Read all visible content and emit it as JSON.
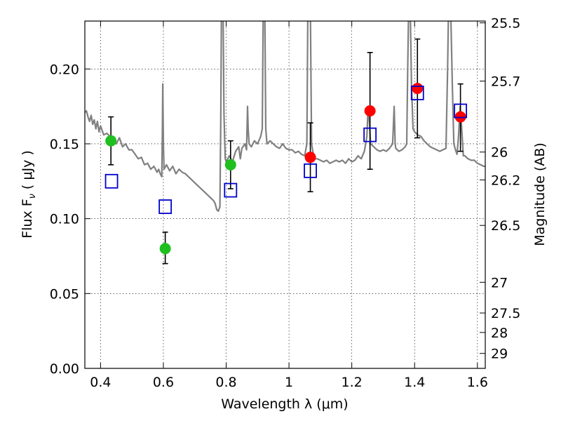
{
  "chart_data": {
    "type": "scatter",
    "xlabel": "Wavelength  λ (μm)",
    "ylabel": "Flux  F",
    "ylabel_sub": "ν",
    "ylabel_unit": "( μJy )",
    "y2label": "Magnitude (AB)",
    "xlim": [
      0.35,
      1.625
    ],
    "ylim": [
      0.0,
      0.232
    ],
    "grid": true,
    "x_ticks": [
      {
        "value": 0.4,
        "label": "0.4"
      },
      {
        "value": 0.6,
        "label": "0.6"
      },
      {
        "value": 0.8,
        "label": "0.8"
      },
      {
        "value": 1.0,
        "label": "1"
      },
      {
        "value": 1.2,
        "label": "1.2"
      },
      {
        "value": 1.4,
        "label": "1.4"
      },
      {
        "value": 1.6,
        "label": "1.6"
      }
    ],
    "y_ticks": [
      {
        "value": 0.0,
        "label": "0.00"
      },
      {
        "value": 0.05,
        "label": "0.05"
      },
      {
        "value": 0.1,
        "label": "0.10"
      },
      {
        "value": 0.15,
        "label": "0.15"
      },
      {
        "value": 0.2,
        "label": "0.20"
      }
    ],
    "mag_ticks": [
      {
        "flux": 0.2308,
        "label": "25.5"
      },
      {
        "flux": 0.1919,
        "label": "25.7"
      },
      {
        "flux": 0.1445,
        "label": "26"
      },
      {
        "flux": 0.1259,
        "label": "26.2"
      },
      {
        "flux": 0.0955,
        "label": "26.5"
      },
      {
        "flux": 0.0575,
        "label": "27"
      },
      {
        "flux": 0.037,
        "label": "27.5"
      },
      {
        "flux": 0.024,
        "label": "28"
      },
      {
        "flux": 0.01,
        "label": "29"
      }
    ],
    "colors": {
      "spectrum": "#808080",
      "green": "#1fbf1f",
      "red": "#ff0000",
      "model": "#0000cc",
      "errorbar": "#000000"
    },
    "series": [
      {
        "marker": "green-circle",
        "points": [
          {
            "x": 0.433,
            "y": 0.152,
            "ylo": 0.136,
            "yhi": 0.168
          },
          {
            "x": 0.606,
            "y": 0.08,
            "ylo": 0.07,
            "yhi": 0.091
          },
          {
            "x": 0.814,
            "y": 0.136,
            "ylo": 0.12,
            "yhi": 0.152
          }
        ]
      },
      {
        "marker": "red-circle",
        "points": [
          {
            "x": 1.068,
            "y": 0.141,
            "ylo": 0.118,
            "yhi": 0.164
          },
          {
            "x": 1.258,
            "y": 0.172,
            "ylo": 0.133,
            "yhi": 0.211
          },
          {
            "x": 1.409,
            "y": 0.187,
            "ylo": 0.154,
            "yhi": 0.22
          },
          {
            "x": 1.546,
            "y": 0.168,
            "ylo": 0.145,
            "yhi": 0.19
          }
        ]
      },
      {
        "marker": "blue-open-square",
        "points": [
          {
            "x": 0.435,
            "y": 0.125
          },
          {
            "x": 0.606,
            "y": 0.108
          },
          {
            "x": 0.814,
            "y": 0.119
          },
          {
            "x": 1.068,
            "y": 0.132
          },
          {
            "x": 1.258,
            "y": 0.156
          },
          {
            "x": 1.409,
            "y": 0.184
          },
          {
            "x": 1.546,
            "y": 0.172
          }
        ]
      }
    ],
    "spectrum": [
      [
        0.35,
        0.171
      ],
      [
        0.355,
        0.172
      ],
      [
        0.36,
        0.168
      ],
      [
        0.365,
        0.165
      ],
      [
        0.37,
        0.169
      ],
      [
        0.375,
        0.163
      ],
      [
        0.38,
        0.166
      ],
      [
        0.385,
        0.16
      ],
      [
        0.39,
        0.165
      ],
      [
        0.395,
        0.158
      ],
      [
        0.4,
        0.162
      ],
      [
        0.41,
        0.156
      ],
      [
        0.42,
        0.157
      ],
      [
        0.43,
        0.155
      ],
      [
        0.44,
        0.155
      ],
      [
        0.45,
        0.15
      ],
      [
        0.46,
        0.154
      ],
      [
        0.47,
        0.148
      ],
      [
        0.48,
        0.15
      ],
      [
        0.49,
        0.146
      ],
      [
        0.5,
        0.146
      ],
      [
        0.51,
        0.143
      ],
      [
        0.52,
        0.14
      ],
      [
        0.53,
        0.141
      ],
      [
        0.54,
        0.136
      ],
      [
        0.55,
        0.137
      ],
      [
        0.56,
        0.133
      ],
      [
        0.57,
        0.135
      ],
      [
        0.58,
        0.131
      ],
      [
        0.585,
        0.133
      ],
      [
        0.59,
        0.13
      ],
      [
        0.595,
        0.128
      ],
      [
        0.597,
        0.16
      ],
      [
        0.598,
        0.19
      ],
      [
        0.6,
        0.15
      ],
      [
        0.602,
        0.133
      ],
      [
        0.61,
        0.136
      ],
      [
        0.62,
        0.132
      ],
      [
        0.63,
        0.135
      ],
      [
        0.64,
        0.13
      ],
      [
        0.65,
        0.133
      ],
      [
        0.66,
        0.131
      ],
      [
        0.67,
        0.13
      ],
      [
        0.68,
        0.128
      ],
      [
        0.69,
        0.126
      ],
      [
        0.7,
        0.124
      ],
      [
        0.71,
        0.122
      ],
      [
        0.72,
        0.12
      ],
      [
        0.73,
        0.118
      ],
      [
        0.74,
        0.116
      ],
      [
        0.75,
        0.114
      ],
      [
        0.76,
        0.112
      ],
      [
        0.765,
        0.11
      ],
      [
        0.77,
        0.106
      ],
      [
        0.775,
        0.105
      ],
      [
        0.78,
        0.108
      ],
      [
        0.783,
        0.17
      ],
      [
        0.785,
        0.24
      ],
      [
        0.79,
        0.24
      ],
      [
        0.793,
        0.17
      ],
      [
        0.797,
        0.14
      ],
      [
        0.8,
        0.138
      ],
      [
        0.81,
        0.142
      ],
      [
        0.82,
        0.138
      ],
      [
        0.83,
        0.145
      ],
      [
        0.84,
        0.148
      ],
      [
        0.845,
        0.14
      ],
      [
        0.85,
        0.147
      ],
      [
        0.86,
        0.15
      ],
      [
        0.865,
        0.146
      ],
      [
        0.868,
        0.175
      ],
      [
        0.87,
        0.16
      ],
      [
        0.873,
        0.15
      ],
      [
        0.88,
        0.148
      ],
      [
        0.89,
        0.152
      ],
      [
        0.9,
        0.15
      ],
      [
        0.91,
        0.155
      ],
      [
        0.915,
        0.16
      ],
      [
        0.918,
        0.24
      ],
      [
        0.923,
        0.24
      ],
      [
        0.926,
        0.16
      ],
      [
        0.93,
        0.15
      ],
      [
        0.94,
        0.152
      ],
      [
        0.95,
        0.15
      ],
      [
        0.96,
        0.148
      ],
      [
        0.97,
        0.147
      ],
      [
        0.98,
        0.15
      ],
      [
        0.99,
        0.147
      ],
      [
        1.0,
        0.146
      ],
      [
        1.01,
        0.146
      ],
      [
        1.02,
        0.144
      ],
      [
        1.03,
        0.145
      ],
      [
        1.04,
        0.143
      ],
      [
        1.05,
        0.142
      ],
      [
        1.057,
        0.15
      ],
      [
        1.06,
        0.24
      ],
      [
        1.068,
        0.24
      ],
      [
        1.072,
        0.15
      ],
      [
        1.08,
        0.14
      ],
      [
        1.09,
        0.14
      ],
      [
        1.1,
        0.139
      ],
      [
        1.11,
        0.138
      ],
      [
        1.12,
        0.139
      ],
      [
        1.13,
        0.137
      ],
      [
        1.14,
        0.138
      ],
      [
        1.15,
        0.139
      ],
      [
        1.16,
        0.138
      ],
      [
        1.17,
        0.139
      ],
      [
        1.18,
        0.137
      ],
      [
        1.19,
        0.14
      ],
      [
        1.2,
        0.138
      ],
      [
        1.21,
        0.139
      ],
      [
        1.22,
        0.142
      ],
      [
        1.23,
        0.14
      ],
      [
        1.24,
        0.145
      ],
      [
        1.248,
        0.155
      ],
      [
        1.252,
        0.175
      ],
      [
        1.256,
        0.165
      ],
      [
        1.26,
        0.15
      ],
      [
        1.27,
        0.148
      ],
      [
        1.28,
        0.146
      ],
      [
        1.29,
        0.145
      ],
      [
        1.3,
        0.146
      ],
      [
        1.31,
        0.145
      ],
      [
        1.32,
        0.147
      ],
      [
        1.33,
        0.15
      ],
      [
        1.335,
        0.175
      ],
      [
        1.338,
        0.15
      ],
      [
        1.34,
        0.147
      ],
      [
        1.35,
        0.145
      ],
      [
        1.36,
        0.146
      ],
      [
        1.37,
        0.148
      ],
      [
        1.375,
        0.15
      ],
      [
        1.378,
        0.2
      ],
      [
        1.381,
        0.24
      ],
      [
        1.386,
        0.24
      ],
      [
        1.39,
        0.19
      ],
      [
        1.395,
        0.16
      ],
      [
        1.4,
        0.158
      ],
      [
        1.41,
        0.156
      ],
      [
        1.42,
        0.155
      ],
      [
        1.43,
        0.152
      ],
      [
        1.44,
        0.15
      ],
      [
        1.45,
        0.148
      ],
      [
        1.46,
        0.147
      ],
      [
        1.47,
        0.146
      ],
      [
        1.48,
        0.145
      ],
      [
        1.49,
        0.146
      ],
      [
        1.5,
        0.147
      ],
      [
        1.505,
        0.2
      ],
      [
        1.508,
        0.24
      ],
      [
        1.515,
        0.24
      ],
      [
        1.52,
        0.19
      ],
      [
        1.525,
        0.15
      ],
      [
        1.53,
        0.146
      ],
      [
        1.535,
        0.143
      ],
      [
        1.54,
        0.155
      ],
      [
        1.545,
        0.175
      ],
      [
        1.55,
        0.16
      ],
      [
        1.555,
        0.142
      ],
      [
        1.56,
        0.142
      ],
      [
        1.57,
        0.14
      ],
      [
        1.58,
        0.139
      ],
      [
        1.59,
        0.139
      ],
      [
        1.6,
        0.137
      ],
      [
        1.61,
        0.136
      ],
      [
        1.62,
        0.135
      ],
      [
        1.625,
        0.135
      ]
    ]
  }
}
